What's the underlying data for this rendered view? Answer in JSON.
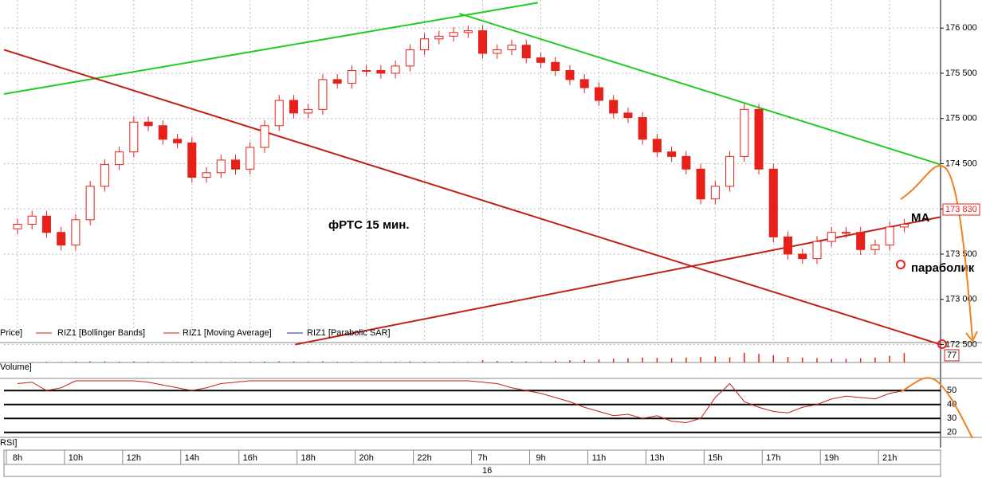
{
  "chart_data": {
    "type": "candlestick",
    "annotation_title": "фРТС   15 мин.",
    "annotation_ma": "MA",
    "annotation_sar": "параболик",
    "legend": [
      "Price]",
      "RIZ1 [Bollinger Bands]",
      "RIZ1 [Moving Average]",
      "RIZ1 [Parabolic SAR]"
    ],
    "volume_label": "Volume]",
    "rsi_label": "RSI]",
    "date_label": "16",
    "last_price": 173.83,
    "last_price_label": "173 830",
    "last_volume": 77,
    "categories": [
      "8h",
      null,
      null,
      null,
      "10h",
      null,
      null,
      null,
      "12h",
      null,
      null,
      null,
      "14h",
      null,
      null,
      null,
      "16h",
      null,
      null,
      null,
      "18h",
      null,
      null,
      null,
      "20h",
      null,
      null,
      null,
      "22h",
      null,
      null,
      null,
      "7h",
      null,
      null,
      null,
      "9h",
      null,
      null,
      null,
      "11h",
      null,
      null,
      null,
      "13h",
      null,
      null,
      null,
      "15h",
      null,
      null,
      null,
      "17h",
      null,
      null,
      null,
      "19h",
      null,
      null,
      null,
      "21h",
      null
    ],
    "open": [
      173.78,
      173.83,
      173.92,
      173.74,
      173.6,
      173.88,
      174.25,
      174.49,
      174.63,
      174.96,
      174.92,
      174.77,
      174.73,
      174.35,
      174.4,
      174.54,
      174.44,
      174.68,
      174.92,
      175.2,
      175.06,
      175.1,
      175.43,
      175.39,
      175.53,
      175.53,
      175.5,
      175.58,
      175.76,
      175.88,
      175.91,
      175.95,
      175.97,
      175.72,
      175.76,
      175.81,
      175.67,
      175.62,
      175.53,
      175.43,
      175.34,
      175.2,
      175.06,
      175.01,
      174.77,
      174.63,
      174.58,
      174.44,
      174.11,
      174.25,
      174.58,
      175.1,
      174.44,
      173.69,
      173.5,
      173.45,
      173.64,
      173.74,
      173.74,
      173.55,
      173.6,
      173.8
    ],
    "high": [
      173.89,
      173.98,
      173.98,
      173.8,
      173.94,
      174.31,
      174.55,
      174.69,
      175.02,
      175.02,
      174.98,
      174.83,
      174.79,
      174.46,
      174.6,
      174.6,
      174.74,
      174.98,
      175.26,
      175.26,
      175.16,
      175.49,
      175.49,
      175.59,
      175.59,
      175.59,
      175.64,
      175.82,
      175.94,
      175.97,
      176.01,
      176.03,
      176.03,
      175.82,
      175.87,
      175.87,
      175.73,
      175.68,
      175.59,
      175.49,
      175.4,
      175.26,
      175.12,
      175.07,
      174.83,
      174.69,
      174.64,
      174.5,
      174.31,
      174.64,
      175.16,
      175.16,
      174.5,
      173.75,
      173.56,
      173.7,
      173.8,
      173.8,
      173.8,
      173.66,
      173.86,
      173.89
    ],
    "low": [
      173.72,
      173.77,
      173.68,
      173.54,
      173.54,
      173.82,
      174.19,
      174.43,
      174.57,
      174.86,
      174.71,
      174.67,
      174.29,
      174.29,
      174.34,
      174.38,
      174.38,
      174.62,
      174.86,
      175.0,
      175.0,
      175.04,
      175.33,
      175.33,
      175.47,
      175.44,
      175.44,
      175.52,
      175.7,
      175.82,
      175.85,
      175.89,
      175.66,
      175.66,
      175.7,
      175.61,
      175.56,
      175.47,
      175.37,
      175.28,
      175.14,
      175.0,
      174.95,
      174.71,
      174.57,
      174.52,
      174.38,
      174.05,
      174.05,
      174.19,
      174.52,
      174.38,
      173.63,
      173.44,
      173.39,
      173.39,
      173.58,
      173.68,
      173.49,
      173.49,
      173.54,
      173.74
    ],
    "close": [
      173.83,
      173.92,
      173.74,
      173.6,
      173.88,
      174.25,
      174.49,
      174.63,
      174.96,
      174.92,
      174.77,
      174.73,
      174.35,
      174.4,
      174.54,
      174.44,
      174.68,
      174.92,
      175.2,
      175.06,
      175.1,
      175.43,
      175.39,
      175.53,
      175.53,
      175.5,
      175.58,
      175.76,
      175.88,
      175.91,
      175.95,
      175.97,
      175.72,
      175.76,
      175.81,
      175.67,
      175.62,
      175.53,
      175.43,
      175.34,
      175.2,
      175.06,
      175.01,
      174.77,
      174.63,
      174.58,
      174.44,
      174.11,
      174.25,
      174.58,
      175.1,
      174.44,
      173.69,
      173.5,
      173.45,
      173.64,
      173.74,
      173.74,
      173.55,
      173.6,
      173.8,
      173.83
    ],
    "volume": [
      5,
      4,
      6,
      5,
      8,
      10,
      9,
      7,
      9,
      6,
      5,
      5,
      7,
      6,
      5,
      5,
      6,
      8,
      10,
      8,
      7,
      9,
      6,
      6,
      5,
      5,
      6,
      8,
      7,
      6,
      5,
      5,
      20,
      12,
      10,
      9,
      8,
      15,
      18,
      20,
      25,
      30,
      35,
      40,
      38,
      35,
      40,
      45,
      50,
      42,
      80,
      70,
      60,
      45,
      40,
      35,
      30,
      30,
      35,
      40,
      55,
      77
    ],
    "rsi": [
      55,
      56,
      50,
      52,
      57,
      57,
      57,
      57,
      57,
      56,
      54,
      52,
      50,
      52,
      55,
      56,
      57,
      57,
      57,
      57,
      57,
      57,
      57,
      57,
      57,
      57,
      57,
      57,
      57,
      57,
      57,
      57,
      56,
      55,
      52,
      50,
      48,
      45,
      42,
      38,
      35,
      32,
      33,
      30,
      32,
      28,
      27,
      30,
      45,
      55,
      42,
      38,
      35,
      34,
      38,
      40,
      44,
      46,
      45,
      44,
      48,
      50
    ],
    "trendlines": [
      {
        "color": "#22cc22",
        "x": [
          -0.93,
          35.8
        ],
        "y": [
          175.27,
          176.28
        ]
      },
      {
        "color": "#22cc22",
        "x": [
          30.4,
          63.5
        ],
        "y": [
          176.16,
          174.49
        ]
      },
      {
        "color": "#c0201a",
        "x": [
          -0.93,
          63.5
        ],
        "y": [
          175.76,
          172.5
        ]
      },
      {
        "color": "#c0201a",
        "x": [
          19.1,
          63.5
        ],
        "y": [
          172.5,
          173.91
        ]
      }
    ],
    "xlim": [
      -0.93,
      63.5
    ],
    "ylim": [
      172.46,
      176.31
    ],
    "yticks": [
      {
        "value": 176,
        "label": "176 000"
      },
      {
        "value": 175.5,
        "label": "175 500"
      },
      {
        "value": 175,
        "label": "175 000"
      },
      {
        "value": 174.5,
        "label": "174 500"
      },
      {
        "value": 174,
        "label": "174 000"
      },
      {
        "value": 173.5,
        "label": "173 500"
      },
      {
        "value": 173,
        "label": "173 000"
      },
      {
        "value": 172.5,
        "label": "172 500"
      }
    ],
    "volume_lim": [
      0,
      150
    ],
    "rsi_lim": [
      17,
      57
    ],
    "rsi_ticks": [
      50,
      40,
      30,
      20
    ],
    "candle_color": "#e8201a",
    "grid": true
  }
}
